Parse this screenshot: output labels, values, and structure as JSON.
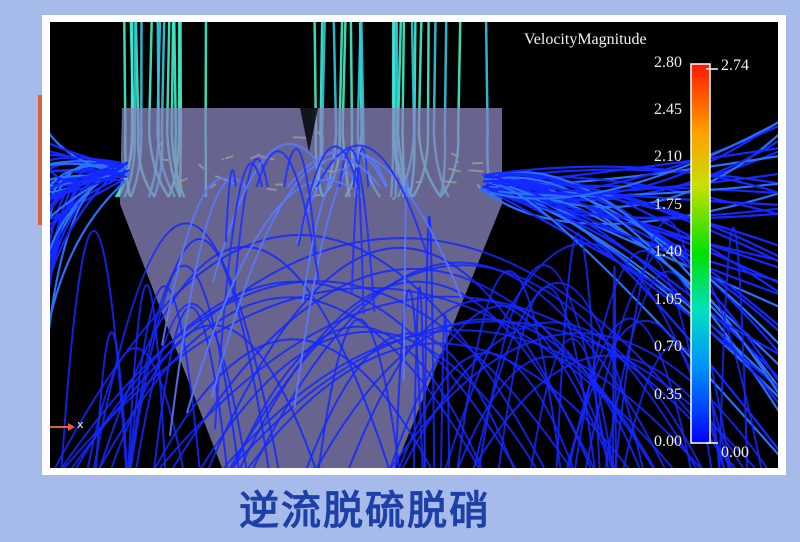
{
  "legend": {
    "title": "VelocityMagnitude",
    "ticks": [
      "2.80",
      "2.45",
      "2.10",
      "1.75",
      "1.40",
      "1.05",
      "0.70",
      "0.35",
      "0.00"
    ],
    "max_label": "2.74",
    "min_label": "0.00",
    "range": [
      0.0,
      2.8
    ],
    "colors": [
      "#0000ff",
      "#00a0ff",
      "#00e0c0",
      "#00e000",
      "#c0e000",
      "#ffa000",
      "#ff2000"
    ]
  },
  "axis_triad": {
    "label": "x",
    "color": "#e8584a"
  },
  "caption": "逆流脱硫脱硝",
  "colors": {
    "background": "#a6bbe9",
    "caption": "#1e3fa6",
    "streamline_low": "#1428ff",
    "streamline_mid": "#40f0c8",
    "vessel": "#8a86c0"
  }
}
